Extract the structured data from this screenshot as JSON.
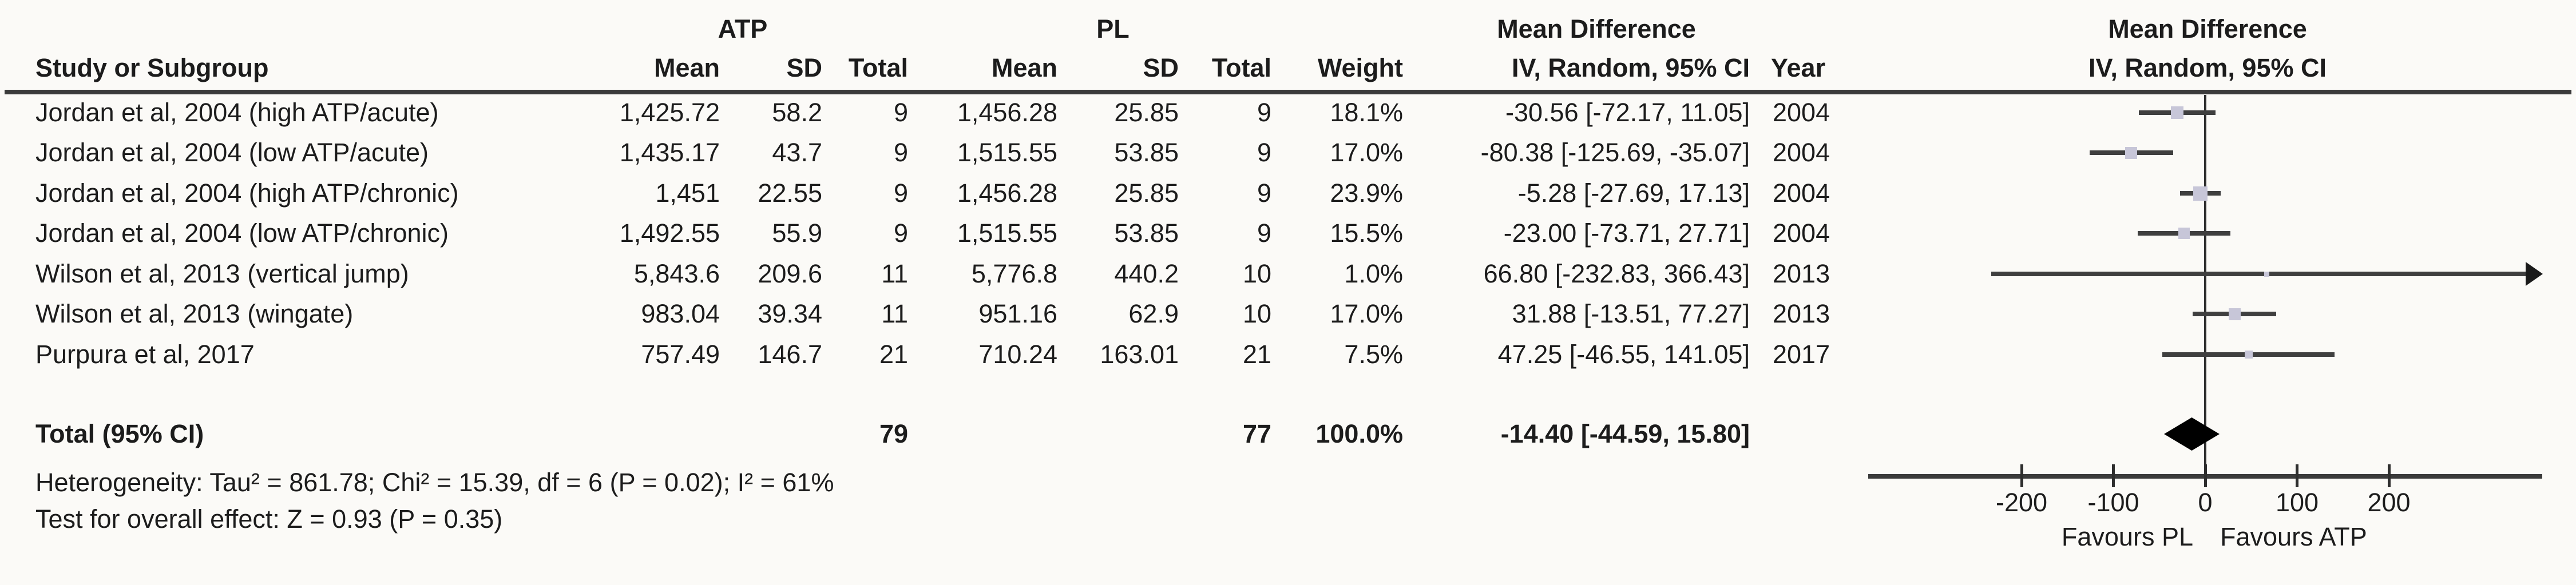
{
  "colors": {
    "background": "#fbfaf7",
    "text": "#1c1c1c",
    "ci_line": "#3f3f3f",
    "square_fill": "#c7c6d8",
    "diamond_fill": "#000000"
  },
  "headers": {
    "group_atp": "ATP",
    "group_pl": "PL",
    "mean_difference_stats": "Mean Difference",
    "mean_difference_plot": "Mean Difference",
    "study": "Study or Subgroup",
    "atp_mean": "Mean",
    "atp_sd": "SD",
    "atp_total": "Total",
    "pl_mean": "Mean",
    "pl_sd": "SD",
    "pl_total": "Total",
    "weight": "Weight",
    "iv_random_stats": "IV, Random, 95% CI",
    "year": "Year",
    "iv_random_plot": "IV, Random, 95% CI"
  },
  "studies": [
    {
      "label": "Jordan et al, 2004 (high ATP/acute)",
      "atp_mean": "1,425.72",
      "atp_sd": "58.2",
      "atp_total": "9",
      "pl_mean": "1,456.28",
      "pl_sd": "25.85",
      "pl_total": "9",
      "weight": "18.1%",
      "ci_text": "-30.56 [-72.17, 11.05]",
      "year": "2004",
      "est": -30.56,
      "lo": -72.17,
      "hi": 11.05,
      "weight_pct": 18.1,
      "arrow_right": false
    },
    {
      "label": "Jordan et al, 2004 (low ATP/acute)",
      "atp_mean": "1,435.17",
      "atp_sd": "43.7",
      "atp_total": "9",
      "pl_mean": "1,515.55",
      "pl_sd": "53.85",
      "pl_total": "9",
      "weight": "17.0%",
      "ci_text": "-80.38 [-125.69, -35.07]",
      "year": "2004",
      "est": -80.38,
      "lo": -125.69,
      "hi": -35.07,
      "weight_pct": 17.0,
      "arrow_right": false
    },
    {
      "label": "Jordan et al, 2004 (high ATP/chronic)",
      "atp_mean": "1,451",
      "atp_sd": "22.55",
      "atp_total": "9",
      "pl_mean": "1,456.28",
      "pl_sd": "25.85",
      "pl_total": "9",
      "weight": "23.9%",
      "ci_text": "-5.28 [-27.69, 17.13]",
      "year": "2004",
      "est": -5.28,
      "lo": -27.69,
      "hi": 17.13,
      "weight_pct": 23.9,
      "arrow_right": false
    },
    {
      "label": "Jordan et al, 2004 (low ATP/chronic)",
      "atp_mean": "1,492.55",
      "atp_sd": "55.9",
      "atp_total": "9",
      "pl_mean": "1,515.55",
      "pl_sd": "53.85",
      "pl_total": "9",
      "weight": "15.5%",
      "ci_text": "-23.00 [-73.71, 27.71]",
      "year": "2004",
      "est": -23.0,
      "lo": -73.71,
      "hi": 27.71,
      "weight_pct": 15.5,
      "arrow_right": false
    },
    {
      "label": "Wilson et al, 2013 (vertical jump)",
      "atp_mean": "5,843.6",
      "atp_sd": "209.6",
      "atp_total": "11",
      "pl_mean": "5,776.8",
      "pl_sd": "440.2",
      "pl_total": "10",
      "weight": "1.0%",
      "ci_text": "66.80 [-232.83, 366.43]",
      "year": "2013",
      "est": 66.8,
      "lo": -232.83,
      "hi": 366.43,
      "weight_pct": 1.0,
      "arrow_right": true
    },
    {
      "label": "Wilson et al, 2013 (wingate)",
      "atp_mean": "983.04",
      "atp_sd": "39.34",
      "atp_total": "11",
      "pl_mean": "951.16",
      "pl_sd": "62.9",
      "pl_total": "10",
      "weight": "17.0%",
      "ci_text": "31.88 [-13.51, 77.27]",
      "year": "2013",
      "est": 31.88,
      "lo": -13.51,
      "hi": 77.27,
      "weight_pct": 17.0,
      "arrow_right": false
    },
    {
      "label": "Purpura et al, 2017",
      "atp_mean": "757.49",
      "atp_sd": "146.7",
      "atp_total": "21",
      "pl_mean": "710.24",
      "pl_sd": "163.01",
      "pl_total": "21",
      "weight": "7.5%",
      "ci_text": "47.25 [-46.55, 141.05]",
      "year": "2017",
      "est": 47.25,
      "lo": -46.55,
      "hi": 141.05,
      "weight_pct": 7.5,
      "arrow_right": false
    }
  ],
  "total_row": {
    "label": "Total (95% CI)",
    "atp_total": "79",
    "pl_total": "77",
    "weight": "100.0%",
    "ci_text": "-14.40 [-44.59, 15.80]",
    "est": -14.4,
    "lo": -44.59,
    "hi": 15.8
  },
  "footnotes": {
    "heterogeneity": "Heterogeneity: Tau² = 861.78; Chi² = 15.39, df = 6 (P = 0.02); I² = 61%",
    "overall_effect": "Test for overall effect: Z = 0.93 (P = 0.35)"
  },
  "axis": {
    "ticks": [
      "-200",
      "-100",
      "0",
      "100",
      "200"
    ],
    "tick_values": [
      -200,
      -100,
      0,
      100,
      200
    ],
    "favours_left": "Favours PL",
    "favours_right": "Favours ATP"
  },
  "chart_data": {
    "type": "forest",
    "effect_measure": "Mean Difference, IV, Random, 95% CI",
    "studies": [
      "Jordan et al, 2004 (high ATP/acute)",
      "Jordan et al, 2004 (low ATP/acute)",
      "Jordan et al, 2004 (high ATP/chronic)",
      "Jordan et al, 2004 (low ATP/chronic)",
      "Wilson et al, 2013 (vertical jump)",
      "Wilson et al, 2013 (wingate)",
      "Purpura et al, 2017"
    ],
    "estimates": [
      -30.56,
      -80.38,
      -5.28,
      -23.0,
      66.8,
      31.88,
      47.25
    ],
    "ci_low": [
      -72.17,
      -125.69,
      -27.69,
      -73.71,
      -232.83,
      -13.51,
      -46.55
    ],
    "ci_high": [
      11.05,
      -35.07,
      17.13,
      27.71,
      366.43,
      77.27,
      141.05
    ],
    "weights_pct": [
      18.1,
      17.0,
      23.9,
      15.5,
      1.0,
      17.0,
      7.5
    ],
    "years": [
      2004,
      2004,
      2004,
      2004,
      2013,
      2013,
      2017
    ],
    "total_estimate": -14.4,
    "total_ci": [
      -44.59,
      15.8
    ],
    "xlim": [
      -370,
      370
    ],
    "xticks": [
      -200,
      -100,
      0,
      100,
      200
    ],
    "xlabel_left": "Favours PL",
    "xlabel_right": "Favours ATP"
  }
}
